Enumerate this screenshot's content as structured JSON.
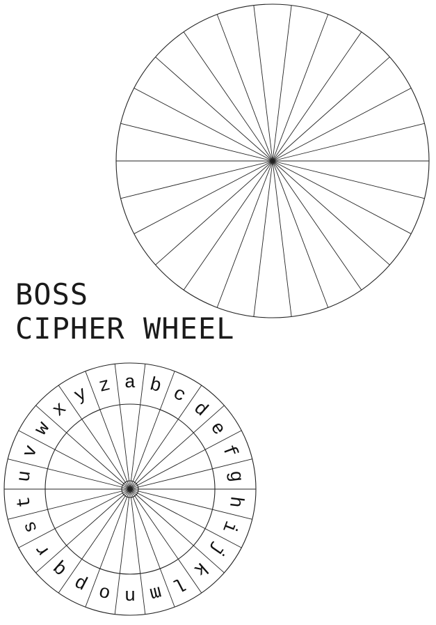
{
  "title": {
    "line1": "BOSS",
    "line2": "CIPHER WHEEL"
  },
  "outer_wheel": {
    "segments": 26
  },
  "inner_wheel": {
    "segments": 26,
    "letters": [
      "a",
      "b",
      "c",
      "d",
      "e",
      "f",
      "g",
      "h",
      "i",
      "j",
      "k",
      "l",
      "m",
      "n",
      "o",
      "p",
      "q",
      "r",
      "s",
      "t",
      "u",
      "v",
      "w",
      "x",
      "y",
      "z"
    ]
  },
  "colors": {
    "ink": "#222222",
    "background": "#ffffff"
  }
}
